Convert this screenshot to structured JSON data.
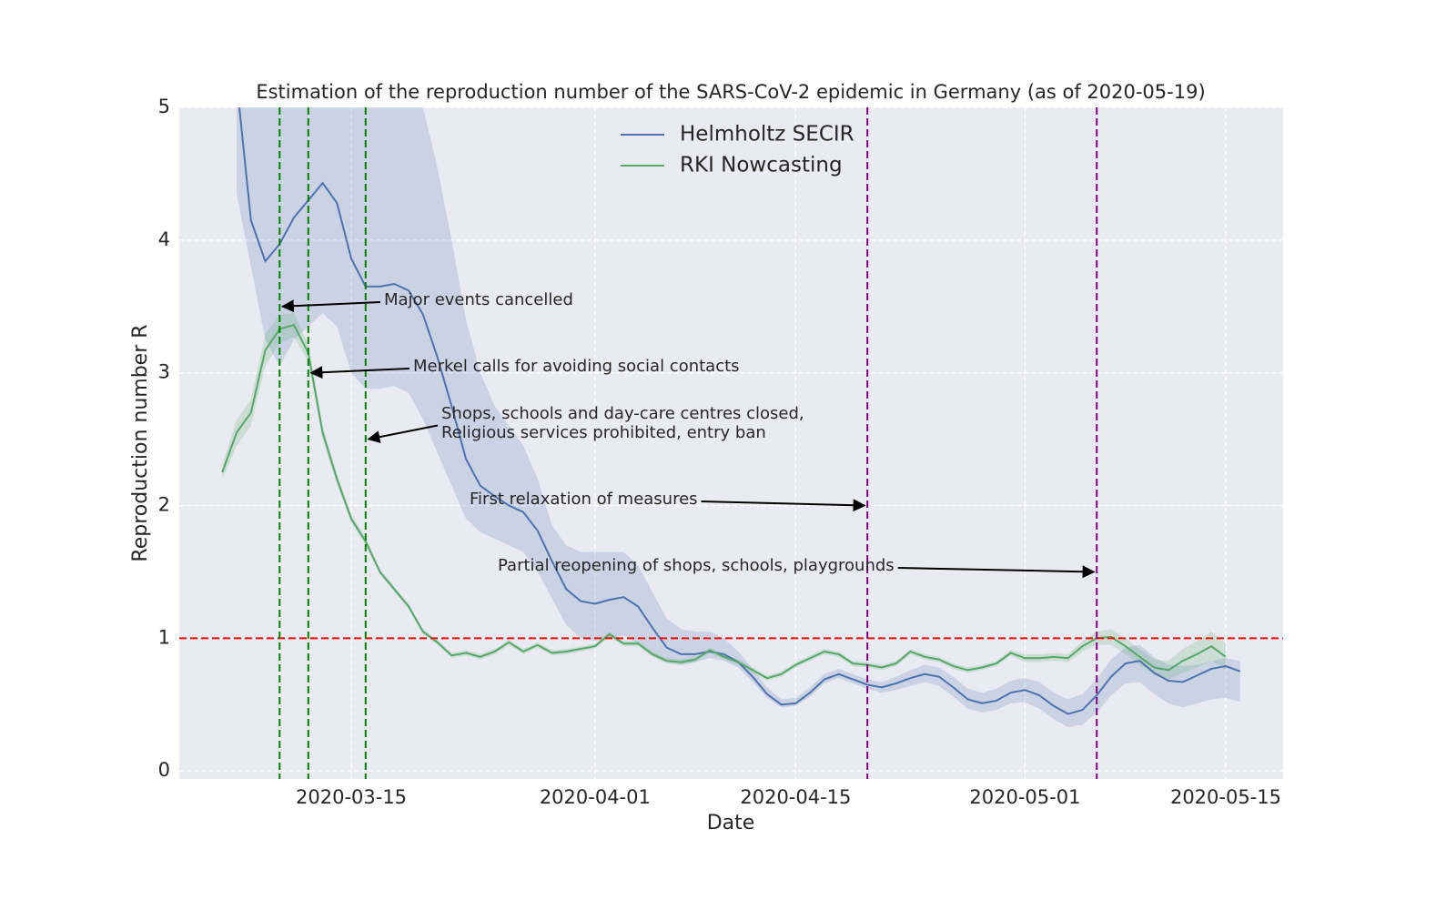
{
  "chart_data": {
    "type": "line",
    "title": "Estimation of the reproduction number of the SARS-CoV-2 epidemic in Germany (as of 2020-05-19)",
    "x_label": "Date",
    "y_label": "Reproduction number R",
    "xlim": [
      "2020-03-03",
      "2020-05-19"
    ],
    "xticks": [
      "2020-03-15",
      "2020-04-01",
      "2020-04-15",
      "2020-05-01",
      "2020-05-15"
    ],
    "ylim": [
      -0.06,
      5
    ],
    "yticks": [
      0,
      1,
      2,
      3,
      4,
      5
    ],
    "grid": true,
    "legend": "upper center",
    "x": [
      "2020-03-06",
      "2020-03-07",
      "2020-03-08",
      "2020-03-09",
      "2020-03-10",
      "2020-03-11",
      "2020-03-12",
      "2020-03-13",
      "2020-03-14",
      "2020-03-15",
      "2020-03-16",
      "2020-03-17",
      "2020-03-18",
      "2020-03-19",
      "2020-03-20",
      "2020-03-21",
      "2020-03-22",
      "2020-03-23",
      "2020-03-24",
      "2020-03-25",
      "2020-03-26",
      "2020-03-27",
      "2020-03-28",
      "2020-03-29",
      "2020-03-30",
      "2020-03-31",
      "2020-04-01",
      "2020-04-02",
      "2020-04-03",
      "2020-04-04",
      "2020-04-05",
      "2020-04-06",
      "2020-04-07",
      "2020-04-08",
      "2020-04-09",
      "2020-04-10",
      "2020-04-11",
      "2020-04-12",
      "2020-04-13",
      "2020-04-14",
      "2020-04-15",
      "2020-04-16",
      "2020-04-17",
      "2020-04-18",
      "2020-04-19",
      "2020-04-20",
      "2020-04-21",
      "2020-04-22",
      "2020-04-23",
      "2020-04-24",
      "2020-04-25",
      "2020-04-26",
      "2020-04-27",
      "2020-04-28",
      "2020-04-29",
      "2020-04-30",
      "2020-05-01",
      "2020-05-02",
      "2020-05-03",
      "2020-05-04",
      "2020-05-05",
      "2020-05-06",
      "2020-05-07",
      "2020-05-08",
      "2020-05-09",
      "2020-05-10",
      "2020-05-11",
      "2020-05-12",
      "2020-05-13",
      "2020-05-14",
      "2020-05-15",
      "2020-05-16"
    ],
    "series": [
      {
        "name": "Helmholtz SECIR",
        "color": "#4c72b0",
        "values": [
          null,
          5.2,
          4.15,
          3.84,
          3.97,
          4.17,
          4.3,
          4.43,
          4.28,
          3.86,
          3.65,
          3.65,
          3.67,
          3.62,
          3.44,
          3.12,
          2.75,
          2.35,
          2.15,
          2.07,
          2.0,
          1.95,
          1.81,
          1.58,
          1.37,
          1.28,
          1.26,
          1.29,
          1.31,
          1.24,
          1.08,
          0.93,
          0.88,
          0.88,
          0.9,
          0.88,
          0.82,
          0.71,
          0.58,
          0.5,
          0.51,
          0.59,
          0.69,
          0.73,
          0.69,
          0.65,
          0.63,
          0.66,
          0.7,
          0.73,
          0.71,
          0.63,
          0.54,
          0.51,
          0.53,
          0.59,
          0.61,
          0.57,
          0.49,
          0.43,
          0.46,
          0.57,
          0.71,
          0.81,
          0.83,
          0.74,
          0.68,
          0.67,
          0.72,
          0.77,
          0.79,
          0.75
        ],
        "lower": [
          null,
          4.35,
          3.8,
          3.25,
          3.05,
          3.25,
          3.35,
          3.45,
          3.35,
          3.0,
          2.88,
          2.88,
          2.9,
          2.85,
          2.65,
          2.4,
          2.15,
          1.9,
          1.8,
          1.75,
          1.7,
          1.65,
          1.5,
          1.3,
          1.1,
          1.0,
          0.98,
          1.0,
          1.02,
          0.96,
          0.87,
          0.82,
          0.8,
          0.82,
          0.85,
          0.83,
          0.78,
          0.67,
          0.55,
          0.48,
          0.49,
          0.56,
          0.66,
          0.7,
          0.66,
          0.62,
          0.59,
          0.61,
          0.64,
          0.67,
          0.64,
          0.56,
          0.47,
          0.44,
          0.46,
          0.51,
          0.52,
          0.47,
          0.39,
          0.33,
          0.35,
          0.44,
          0.57,
          0.66,
          0.67,
          0.58,
          0.51,
          0.48,
          0.51,
          0.54,
          0.55,
          0.52
        ],
        "upper": [
          null,
          6.0,
          5.8,
          5.6,
          5.5,
          5.5,
          5.5,
          5.5,
          5.4,
          5.3,
          5.3,
          5.3,
          5.3,
          5.2,
          5.0,
          4.55,
          4.0,
          3.4,
          3.0,
          2.75,
          2.6,
          2.45,
          2.2,
          1.85,
          1.7,
          1.65,
          1.65,
          1.65,
          1.65,
          1.55,
          1.35,
          1.15,
          1.07,
          1.05,
          1.05,
          1.0,
          0.9,
          0.77,
          0.63,
          0.54,
          0.55,
          0.63,
          0.73,
          0.77,
          0.73,
          0.69,
          0.67,
          0.71,
          0.76,
          0.8,
          0.78,
          0.71,
          0.62,
          0.59,
          0.62,
          0.68,
          0.7,
          0.67,
          0.59,
          0.54,
          0.58,
          0.69,
          0.84,
          0.93,
          0.95,
          0.86,
          0.8,
          0.79,
          0.8,
          0.83,
          0.85,
          0.83
        ]
      },
      {
        "name": "RKI Nowcasting",
        "color": "#55a868",
        "values": [
          2.25,
          2.55,
          2.7,
          3.17,
          3.33,
          3.36,
          3.15,
          2.55,
          2.2,
          1.9,
          1.73,
          1.5,
          1.37,
          1.24,
          1.05,
          0.97,
          0.87,
          0.89,
          0.86,
          0.9,
          0.97,
          0.9,
          0.95,
          0.89,
          0.9,
          0.92,
          0.94,
          1.03,
          0.96,
          0.96,
          0.88,
          0.83,
          0.82,
          0.84,
          0.91,
          0.86,
          0.82,
          0.76,
          0.7,
          0.73,
          0.8,
          0.85,
          0.9,
          0.88,
          0.81,
          0.8,
          0.78,
          0.81,
          0.9,
          0.86,
          0.84,
          0.79,
          0.76,
          0.78,
          0.81,
          0.89,
          0.85,
          0.85,
          0.86,
          0.85,
          0.94,
          1.0,
          1.01,
          0.94,
          0.86,
          0.78,
          0.76,
          0.83,
          0.88,
          0.94,
          0.86,
          null
        ],
        "lower": [
          2.2,
          2.45,
          2.6,
          3.05,
          3.22,
          3.27,
          3.08,
          2.5,
          2.16,
          1.87,
          1.7,
          1.48,
          1.35,
          1.22,
          1.03,
          0.95,
          0.85,
          0.87,
          0.84,
          0.88,
          0.95,
          0.88,
          0.93,
          0.87,
          0.88,
          0.9,
          0.92,
          1.01,
          0.94,
          0.94,
          0.86,
          0.81,
          0.8,
          0.82,
          0.89,
          0.84,
          0.8,
          0.74,
          0.68,
          0.71,
          0.78,
          0.83,
          0.88,
          0.86,
          0.79,
          0.78,
          0.76,
          0.79,
          0.88,
          0.84,
          0.82,
          0.77,
          0.74,
          0.76,
          0.79,
          0.87,
          0.82,
          0.82,
          0.83,
          0.82,
          0.9,
          0.95,
          0.95,
          0.88,
          0.8,
          0.72,
          0.69,
          0.74,
          0.78,
          0.83,
          0.76,
          null
        ],
        "upper": [
          2.3,
          2.65,
          2.8,
          3.29,
          3.44,
          3.45,
          3.22,
          2.6,
          2.24,
          1.93,
          1.76,
          1.52,
          1.39,
          1.26,
          1.07,
          0.99,
          0.89,
          0.91,
          0.88,
          0.92,
          0.99,
          0.92,
          0.97,
          0.91,
          0.92,
          0.94,
          0.96,
          1.05,
          0.98,
          0.98,
          0.9,
          0.85,
          0.84,
          0.86,
          0.93,
          0.88,
          0.84,
          0.78,
          0.72,
          0.75,
          0.82,
          0.87,
          0.92,
          0.9,
          0.83,
          0.82,
          0.8,
          0.83,
          0.92,
          0.88,
          0.86,
          0.81,
          0.78,
          0.8,
          0.83,
          0.91,
          0.88,
          0.88,
          0.89,
          0.88,
          0.98,
          1.05,
          1.07,
          1.0,
          0.92,
          0.84,
          0.83,
          0.92,
          0.98,
          1.05,
          0.96,
          null
        ]
      }
    ],
    "vlines": [
      {
        "x": "2020-03-10",
        "color": "green"
      },
      {
        "x": "2020-03-12",
        "color": "green"
      },
      {
        "x": "2020-03-16",
        "color": "green"
      },
      {
        "x": "2020-04-20",
        "color": "purple"
      },
      {
        "x": "2020-05-06",
        "color": "purple"
      }
    ],
    "hline": {
      "y": 1,
      "color": "red"
    },
    "annotations": [
      {
        "text": [
          "Major events cancelled"
        ],
        "x": "2020-03-10",
        "y": 3.5
      },
      {
        "text": [
          "Merkel calls for avoiding social contacts"
        ],
        "x": "2020-03-12",
        "y": 3.0
      },
      {
        "text": [
          "Shops, schools and day-care centres closed,",
          "Religious services prohibited, entry ban"
        ],
        "x": "2020-03-16",
        "y": 2.5
      },
      {
        "text": [
          "First relaxation of measures"
        ],
        "x": "2020-04-20",
        "y": 2.0
      },
      {
        "text": [
          "Partial reopening of shops, schools, playgrounds"
        ],
        "x": "2020-05-06",
        "y": 1.5
      }
    ]
  }
}
